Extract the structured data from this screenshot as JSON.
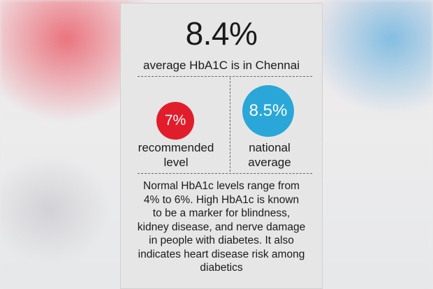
{
  "headline": {
    "value": "8.4%",
    "label": "average HbA1C is in Chennai"
  },
  "stats": [
    {
      "value": "7%",
      "label_line1": "recommended",
      "label_line2": "level",
      "color": "#e21d2b"
    },
    {
      "value": "8.5%",
      "label_line1": "national",
      "label_line2": "average",
      "color": "#2aa7d8"
    }
  ],
  "note": {
    "line1": "Normal HbA1c levels range from",
    "line2": "4% to 6%. High HbA1c is known",
    "line3": "to be a marker for blindness,",
    "line4": "kidney disease, and nerve damage",
    "line5": "in people with diabetes. It also",
    "line6": "indicates heart disease risk among",
    "line7": "diabetics"
  }
}
